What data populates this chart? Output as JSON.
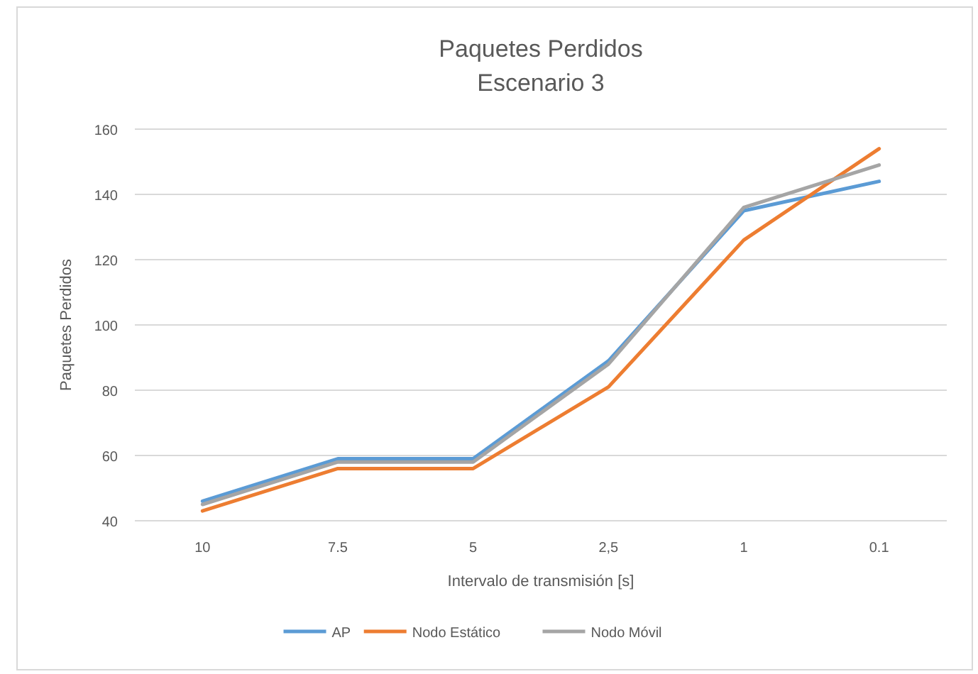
{
  "chart_data": {
    "type": "line",
    "title": "Paquetes Perdidos",
    "subtitle": "Escenario 3",
    "xlabel": "Intervalo de transmisión [s]",
    "ylabel": "Paquetes Perdidos",
    "categories": [
      "10",
      "7.5",
      "5",
      "2,5",
      "1",
      "0.1"
    ],
    "series": [
      {
        "name": "AP",
        "color": "#5b9bd5",
        "values": [
          46,
          59,
          59,
          89,
          135,
          144
        ]
      },
      {
        "name": "Nodo Estático",
        "color": "#ed7d31",
        "values": [
          43,
          56,
          56,
          81,
          126,
          154
        ]
      },
      {
        "name": "Nodo Móvil",
        "color": "#a5a5a5",
        "values": [
          45,
          58,
          58,
          88,
          136,
          149
        ]
      }
    ],
    "ylim": [
      40,
      160
    ],
    "yticks": [
      40,
      60,
      80,
      100,
      120,
      140,
      160
    ],
    "grid": "y",
    "legend": "bottom",
    "marker": "none",
    "line_style": "solid"
  }
}
